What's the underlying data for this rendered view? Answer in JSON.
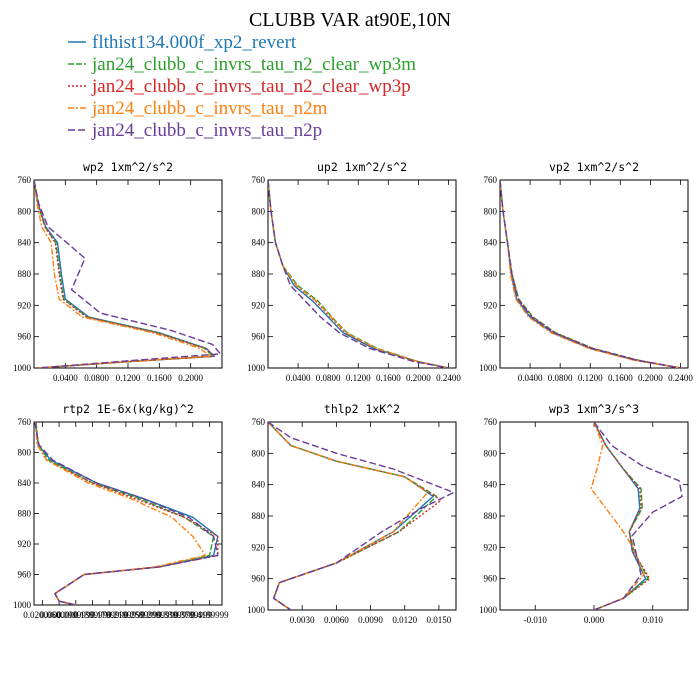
{
  "figure": {
    "title": "CLUBB VAR at90E,10N"
  },
  "legend": [
    {
      "name": "flthist134.000f_xp2_revert",
      "color": "#1f77b4",
      "dash": ""
    },
    {
      "name": "jan24_clubb_c_invrs_tau_n2_clear_wp3m",
      "color": "#2ca02c",
      "dash": "6 2"
    },
    {
      "name": "jan24_clubb_c_invrs_tau_n2_clear_wp3p",
      "color": "#d62728",
      "dash": "2 2"
    },
    {
      "name": "jan24_clubb_c_invrs_tau_n2m",
      "color": "#ff7f0e",
      "dash": "6 2 2 2"
    },
    {
      "name": "jan24_clubb_c_invrs_tau_n2p",
      "color": "#6a3d9a",
      "dash": "7 3"
    }
  ],
  "chart_data": [
    {
      "type": "line",
      "title": "wp2  1xm^2/s^2",
      "xlim": [
        0.0,
        0.24
      ],
      "ylim": [
        760,
        1000
      ],
      "y_inverted": true,
      "xticks": [
        0.04,
        0.08,
        0.12,
        0.16,
        0.2
      ],
      "xtick_labels": [
        "0.0400",
        "0.0800",
        "0.1200",
        "0.1600",
        "0.2000"
      ],
      "yticks": [
        760,
        800,
        840,
        880,
        920,
        960,
        1000
      ],
      "series": [
        {
          "x": [
            0.0,
            0.005,
            0.015,
            0.03,
            0.035,
            0.04,
            0.07,
            0.16,
            0.22,
            0.23,
            0.12,
            0.005
          ],
          "y": [
            760,
            790,
            820,
            840,
            880,
            912,
            935,
            955,
            975,
            985,
            992,
            1000
          ]
        },
        {
          "x": [
            0.0,
            0.005,
            0.014,
            0.028,
            0.033,
            0.038,
            0.068,
            0.158,
            0.218,
            0.228,
            0.12,
            0.005
          ],
          "y": [
            760,
            790,
            820,
            840,
            880,
            912,
            935,
            955,
            975,
            985,
            992,
            1000
          ]
        },
        {
          "x": [
            0.0,
            0.005,
            0.014,
            0.027,
            0.032,
            0.037,
            0.067,
            0.157,
            0.219,
            0.23,
            0.12,
            0.005
          ],
          "y": [
            760,
            790,
            820,
            840,
            880,
            912,
            935,
            955,
            975,
            985,
            992,
            1000
          ]
        },
        {
          "x": [
            0.0,
            0.004,
            0.01,
            0.022,
            0.026,
            0.032,
            0.062,
            0.152,
            0.212,
            0.225,
            0.115,
            0.005
          ],
          "y": [
            760,
            790,
            820,
            840,
            880,
            912,
            935,
            955,
            975,
            985,
            992,
            1000
          ]
        },
        {
          "x": [
            0.0,
            0.006,
            0.018,
            0.042,
            0.065,
            0.048,
            0.085,
            0.175,
            0.228,
            0.238,
            0.13,
            0.005
          ],
          "y": [
            760,
            790,
            820,
            840,
            860,
            900,
            930,
            952,
            970,
            982,
            990,
            1000
          ]
        }
      ]
    },
    {
      "type": "line",
      "title": "up2  1xm^2/s^2",
      "xlim": [
        0.0,
        0.25
      ],
      "ylim": [
        760,
        1000
      ],
      "y_inverted": true,
      "xticks": [
        0.04,
        0.08,
        0.12,
        0.16,
        0.2,
        0.24
      ],
      "xtick_labels": [
        "0.0400",
        "0.0800",
        "0.1200",
        "0.1600",
        "0.2000",
        "0.2400"
      ],
      "yticks": [
        760,
        800,
        840,
        880,
        920,
        960,
        1000
      ],
      "series": [
        {
          "x": [
            0.0,
            0.004,
            0.01,
            0.02,
            0.035,
            0.06,
            0.08,
            0.1,
            0.14,
            0.2,
            0.24
          ],
          "y": [
            760,
            800,
            840,
            870,
            895,
            915,
            935,
            955,
            975,
            992,
            1000
          ]
        },
        {
          "x": [
            0.0,
            0.004,
            0.01,
            0.02,
            0.04,
            0.067,
            0.085,
            0.105,
            0.145,
            0.2,
            0.24
          ],
          "y": [
            760,
            800,
            840,
            870,
            895,
            915,
            935,
            955,
            975,
            992,
            1000
          ]
        },
        {
          "x": [
            0.0,
            0.004,
            0.01,
            0.02,
            0.038,
            0.064,
            0.083,
            0.103,
            0.143,
            0.2,
            0.24
          ],
          "y": [
            760,
            800,
            840,
            870,
            895,
            915,
            935,
            955,
            975,
            992,
            1000
          ]
        },
        {
          "x": [
            0.0,
            0.004,
            0.01,
            0.02,
            0.038,
            0.065,
            0.084,
            0.104,
            0.144,
            0.2,
            0.24
          ],
          "y": [
            760,
            800,
            840,
            870,
            895,
            915,
            935,
            955,
            975,
            992,
            1000
          ]
        },
        {
          "x": [
            0.0,
            0.004,
            0.01,
            0.02,
            0.03,
            0.05,
            0.07,
            0.095,
            0.135,
            0.195,
            0.24
          ],
          "y": [
            760,
            800,
            840,
            870,
            895,
            915,
            935,
            955,
            975,
            992,
            1000
          ]
        }
      ]
    },
    {
      "type": "line",
      "title": "vp2  1xm^2/s^2",
      "xlim": [
        0.0,
        0.25
      ],
      "ylim": [
        760,
        1000
      ],
      "y_inverted": true,
      "xticks": [
        0.04,
        0.08,
        0.12,
        0.16,
        0.2,
        0.24
      ],
      "xtick_labels": [
        "0.0400",
        "0.0800",
        "0.1200",
        "0.1600",
        "0.2000",
        "0.2400"
      ],
      "yticks": [
        760,
        800,
        840,
        880,
        920,
        960,
        1000
      ],
      "series": [
        {
          "x": [
            0.0,
            0.004,
            0.01,
            0.015,
            0.022,
            0.04,
            0.07,
            0.12,
            0.18,
            0.24
          ],
          "y": [
            760,
            800,
            840,
            880,
            912,
            935,
            955,
            975,
            990,
            1000
          ]
        },
        {
          "x": [
            0.0,
            0.004,
            0.01,
            0.016,
            0.025,
            0.044,
            0.074,
            0.124,
            0.184,
            0.24
          ],
          "y": [
            760,
            800,
            840,
            880,
            912,
            935,
            955,
            975,
            990,
            1000
          ]
        },
        {
          "x": [
            0.0,
            0.004,
            0.01,
            0.015,
            0.024,
            0.043,
            0.073,
            0.123,
            0.183,
            0.24
          ],
          "y": [
            760,
            800,
            840,
            880,
            912,
            935,
            955,
            975,
            990,
            1000
          ]
        },
        {
          "x": [
            0.0,
            0.004,
            0.01,
            0.014,
            0.021,
            0.038,
            0.068,
            0.118,
            0.178,
            0.24
          ],
          "y": [
            760,
            800,
            840,
            880,
            912,
            935,
            955,
            975,
            990,
            1000
          ]
        },
        {
          "x": [
            0.0,
            0.004,
            0.01,
            0.016,
            0.024,
            0.042,
            0.072,
            0.122,
            0.182,
            0.24
          ],
          "y": [
            760,
            800,
            840,
            880,
            912,
            935,
            955,
            975,
            990,
            1000
          ]
        }
      ]
    },
    {
      "type": "line",
      "title": "rtp2  1E-6x(kg/kg)^2",
      "xlim": [
        0.0,
        0.45
      ],
      "ylim": [
        760,
        1000
      ],
      "y_inverted": true,
      "xticks": [
        0.02,
        0.06,
        0.1,
        0.14,
        0.18,
        0.22,
        0.26,
        0.3,
        0.34,
        0.38,
        0.42
      ],
      "xtick_labels": [
        "0.0200000",
        "0.0600000",
        "0.0999999",
        "0.1399999",
        "0.1799999",
        "0.2199999",
        "0.2599999",
        "0.2999999",
        "0.3399999",
        "0.3799999",
        "0.4199999"
      ],
      "yticks": [
        760,
        800,
        840,
        880,
        920,
        960,
        1000
      ],
      "series": [
        {
          "x": [
            0.003,
            0.01,
            0.04,
            0.15,
            0.26,
            0.38,
            0.44,
            0.43,
            0.3,
            0.12,
            0.05,
            0.06,
            0.1
          ],
          "y": [
            760,
            790,
            810,
            840,
            860,
            885,
            910,
            935,
            950,
            960,
            985,
            995,
            1000
          ]
        },
        {
          "x": [
            0.005,
            0.01,
            0.035,
            0.14,
            0.25,
            0.36,
            0.43,
            0.42,
            0.3,
            0.12,
            0.05,
            0.06,
            0.1
          ],
          "y": [
            760,
            790,
            810,
            840,
            860,
            885,
            910,
            935,
            950,
            960,
            985,
            995,
            1000
          ]
        },
        {
          "x": [
            0.004,
            0.008,
            0.03,
            0.14,
            0.24,
            0.36,
            0.44,
            0.44,
            0.3,
            0.12,
            0.05,
            0.06,
            0.1
          ],
          "y": [
            760,
            790,
            810,
            840,
            860,
            885,
            910,
            935,
            950,
            960,
            985,
            995,
            1000
          ]
        },
        {
          "x": [
            0.003,
            0.008,
            0.03,
            0.13,
            0.23,
            0.33,
            0.38,
            0.41,
            0.29,
            0.12,
            0.05,
            0.06,
            0.1
          ],
          "y": [
            760,
            790,
            810,
            840,
            860,
            885,
            910,
            935,
            950,
            960,
            985,
            995,
            1000
          ]
        },
        {
          "x": [
            0.002,
            0.012,
            0.045,
            0.15,
            0.26,
            0.37,
            0.43,
            0.44,
            0.3,
            0.12,
            0.05,
            0.06,
            0.1
          ],
          "y": [
            760,
            790,
            810,
            840,
            860,
            885,
            910,
            935,
            950,
            960,
            985,
            995,
            1000
          ]
        }
      ]
    },
    {
      "type": "line",
      "title": "thlp2  1xK^2",
      "xlim": [
        0.0,
        0.0165
      ],
      "ylim": [
        760,
        1000
      ],
      "y_inverted": true,
      "xticks": [
        0.003,
        0.006,
        0.009,
        0.012,
        0.015
      ],
      "xtick_labels": [
        "0.0030",
        "0.0060",
        "0.0090",
        "0.0120",
        "0.0150"
      ],
      "yticks": [
        760,
        800,
        840,
        880,
        920,
        960,
        1000
      ],
      "series": [
        {
          "x": [
            0.0,
            0.002,
            0.006,
            0.012,
            0.0145,
            0.011,
            0.006,
            0.001,
            0.0005,
            0.002
          ],
          "y": [
            760,
            790,
            810,
            830,
            855,
            900,
            940,
            965,
            985,
            1000
          ]
        },
        {
          "x": [
            0.0,
            0.002,
            0.006,
            0.012,
            0.0148,
            0.0115,
            0.006,
            0.001,
            0.0005,
            0.002
          ],
          "y": [
            760,
            790,
            810,
            830,
            855,
            900,
            940,
            965,
            985,
            1000
          ]
        },
        {
          "x": [
            0.0,
            0.002,
            0.006,
            0.012,
            0.0152,
            0.0115,
            0.006,
            0.001,
            0.0005,
            0.002
          ],
          "y": [
            760,
            790,
            810,
            830,
            860,
            900,
            940,
            965,
            985,
            1000
          ]
        },
        {
          "x": [
            0.0,
            0.002,
            0.006,
            0.012,
            0.014,
            0.011,
            0.006,
            0.001,
            0.0005,
            0.002
          ],
          "y": [
            760,
            790,
            810,
            830,
            850,
            900,
            940,
            965,
            985,
            1000
          ]
        },
        {
          "x": [
            0.0,
            0.002,
            0.006,
            0.011,
            0.0163,
            0.0135,
            0.01,
            0.006,
            0.001,
            0.0005,
            0.002
          ],
          "y": [
            760,
            780,
            800,
            820,
            850,
            870,
            900,
            940,
            965,
            985,
            1000
          ]
        }
      ]
    },
    {
      "type": "line",
      "title": "wp3  1xm^3/s^3",
      "xlim": [
        -0.016,
        0.016
      ],
      "ylim": [
        760,
        1000
      ],
      "y_inverted": true,
      "xticks": [
        -0.01,
        0.0,
        0.01
      ],
      "xtick_labels": [
        "-0.010",
        "0.000",
        "0.010"
      ],
      "yticks": [
        760,
        800,
        840,
        880,
        920,
        960,
        1000
      ],
      "series": [
        {
          "x": [
            0.0,
            0.002,
            0.005,
            0.0075,
            0.0078,
            0.006,
            0.0065,
            0.0088,
            0.005,
            0.0
          ],
          "y": [
            760,
            790,
            820,
            845,
            870,
            900,
            925,
            960,
            985,
            1000
          ]
        },
        {
          "x": [
            0.0,
            0.002,
            0.005,
            0.008,
            0.0082,
            0.006,
            0.0068,
            0.0092,
            0.005,
            0.0
          ],
          "y": [
            760,
            790,
            820,
            845,
            870,
            900,
            925,
            960,
            985,
            1000
          ]
        },
        {
          "x": [
            0.0,
            0.002,
            0.005,
            0.0078,
            0.008,
            0.006,
            0.0066,
            0.0095,
            0.005,
            0.0
          ],
          "y": [
            760,
            790,
            820,
            845,
            870,
            900,
            925,
            960,
            985,
            1000
          ]
        },
        {
          "x": [
            0.0,
            0.0015,
            0.0005,
            -0.0005,
            0.002,
            0.005,
            0.007,
            0.0085,
            0.005,
            0.0
          ],
          "y": [
            760,
            790,
            820,
            845,
            870,
            900,
            925,
            955,
            985,
            1000
          ]
        },
        {
          "x": [
            0.0,
            0.003,
            0.008,
            0.0145,
            0.015,
            0.01,
            0.0065,
            0.008,
            0.005,
            0.0
          ],
          "y": [
            760,
            790,
            815,
            835,
            855,
            875,
            905,
            955,
            985,
            1000
          ]
        }
      ]
    }
  ]
}
